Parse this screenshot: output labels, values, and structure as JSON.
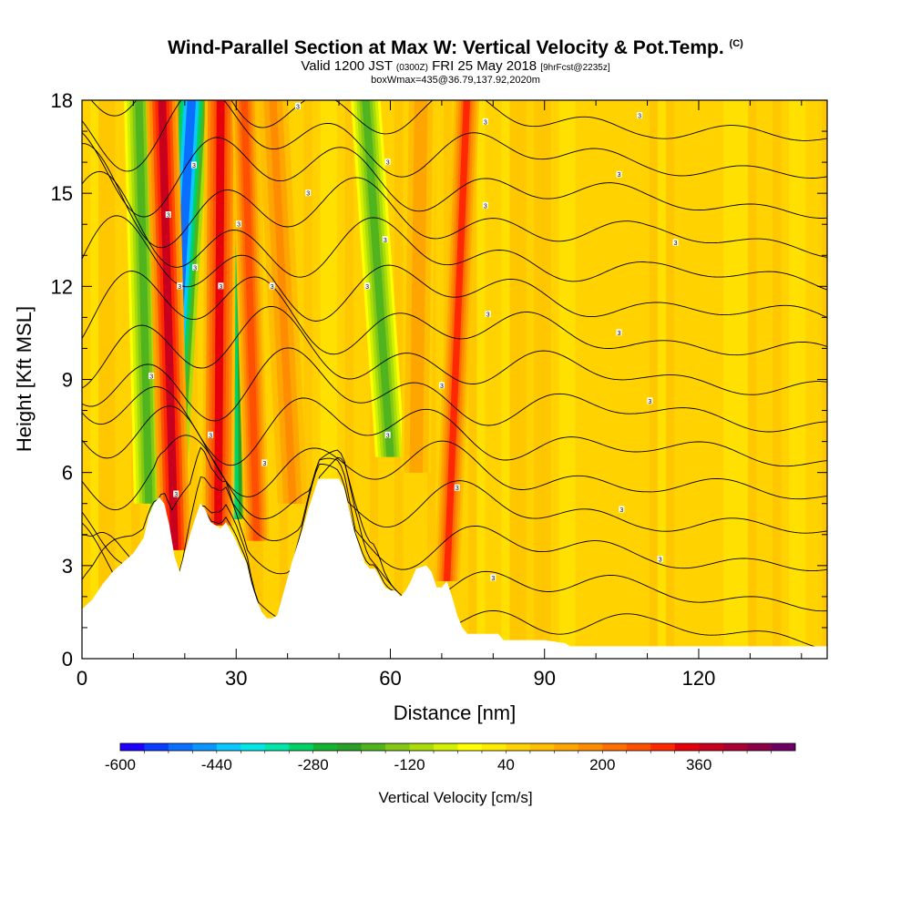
{
  "title": {
    "main": "Wind-Parallel Section at Max W: Vertical Velocity & Pot.Temp.",
    "main_tag": "(C)",
    "valid_prefix": "Valid 1200 JST",
    "valid_zulu": "(0300Z)",
    "valid_date": "FRI 25 May 2018",
    "valid_fcst": "[9hrFcst@2235z]",
    "box_info": "boxWmax=435@36.79,137.92,2020m"
  },
  "chart_data": {
    "type": "heatmap",
    "xlabel": "Distance [nm]",
    "ylabel": "Height [Kft MSL]",
    "xlim": [
      0,
      145
    ],
    "ylim": [
      0,
      18
    ],
    "x_ticks": [
      0,
      30,
      60,
      90,
      120
    ],
    "y_ticks": [
      0,
      3,
      6,
      9,
      12,
      15,
      18
    ],
    "colorbar": {
      "label": "Vertical Velocity [cm/s]",
      "tick_labels": [
        "-600",
        "-440",
        "-280",
        "-120",
        "40",
        "200",
        "360"
      ],
      "tick_values": [
        -600,
        -440,
        -280,
        -120,
        40,
        200,
        360
      ],
      "range": [
        -600,
        520
      ],
      "step": 40,
      "colors": [
        "#1e00ff",
        "#0a3cff",
        "#0a6eff",
        "#0a96ff",
        "#0ac8ff",
        "#00e6e6",
        "#00e6aa",
        "#00d264",
        "#14b432",
        "#28a028",
        "#50b41e",
        "#82c814",
        "#aadc0a",
        "#d2f000",
        "#ffff00",
        "#ffeb00",
        "#ffd200",
        "#ffbe00",
        "#ffa500",
        "#ff8c00",
        "#ff6e00",
        "#ff5000",
        "#ff2800",
        "#e6000a",
        "#c8001e",
        "#aa0032",
        "#8c0046",
        "#6e0064"
      ]
    },
    "terrain_kft": [
      [
        0,
        1.6
      ],
      [
        2,
        1.9
      ],
      [
        4,
        2.4
      ],
      [
        6,
        2.8
      ],
      [
        8,
        3.1
      ],
      [
        10,
        3.4
      ],
      [
        12,
        3.9
      ],
      [
        13,
        4.6
      ],
      [
        14,
        5.0
      ],
      [
        15,
        5.2
      ],
      [
        16,
        5.0
      ],
      [
        17,
        4.3
      ],
      [
        18,
        3.3
      ],
      [
        19,
        2.8
      ],
      [
        20,
        3.4
      ],
      [
        21,
        4.0
      ],
      [
        22,
        4.5
      ],
      [
        23,
        5.0
      ],
      [
        24,
        4.8
      ],
      [
        25,
        4.4
      ],
      [
        26,
        4.3
      ],
      [
        27,
        4.2
      ],
      [
        28,
        4.4
      ],
      [
        29,
        4.1
      ],
      [
        30,
        3.8
      ],
      [
        31,
        3.4
      ],
      [
        32,
        3.1
      ],
      [
        33,
        2.4
      ],
      [
        34,
        1.9
      ],
      [
        35,
        1.5
      ],
      [
        36,
        1.3
      ],
      [
        37,
        1.3
      ],
      [
        38,
        1.4
      ],
      [
        39,
        2.0
      ],
      [
        40,
        2.6
      ],
      [
        41,
        3.2
      ],
      [
        42,
        3.7
      ],
      [
        43,
        4.2
      ],
      [
        44,
        4.8
      ],
      [
        45,
        5.3
      ],
      [
        46,
        5.8
      ],
      [
        48,
        5.8
      ],
      [
        50,
        5.8
      ],
      [
        51,
        5.5
      ],
      [
        52,
        4.8
      ],
      [
        53,
        4.1
      ],
      [
        54,
        3.6
      ],
      [
        55,
        3.1
      ],
      [
        56,
        2.9
      ],
      [
        57,
        2.9
      ],
      [
        58,
        2.6
      ],
      [
        59,
        2.3
      ],
      [
        60,
        2.2
      ],
      [
        61,
        2.2
      ],
      [
        62,
        2.0
      ],
      [
        63,
        2.2
      ],
      [
        64,
        2.5
      ],
      [
        65,
        2.9
      ],
      [
        67,
        3.0
      ],
      [
        68,
        2.8
      ],
      [
        69,
        2.3
      ],
      [
        70,
        2.3
      ],
      [
        71,
        2.5
      ],
      [
        72,
        2.0
      ],
      [
        73,
        1.4
      ],
      [
        74,
        1.0
      ],
      [
        75,
        0.8
      ],
      [
        76,
        0.8
      ],
      [
        81,
        0.8
      ],
      [
        82,
        0.6
      ],
      [
        90,
        0.6
      ],
      [
        94,
        0.5
      ],
      [
        95,
        0.4
      ],
      [
        145,
        0.4
      ]
    ],
    "updraft_bands": [
      {
        "x_bottom": 18.0,
        "y_bottom": 3.5,
        "x_top": 15.5,
        "width_nm": 3.2,
        "w": 360
      },
      {
        "x_bottom": 26.5,
        "y_bottom": 4.3,
        "x_top": 27.0,
        "width_nm": 3.2,
        "w": 320
      },
      {
        "x_bottom": 34.0,
        "y_bottom": 3.8,
        "x_top": 31.5,
        "width_nm": 2.5,
        "w": 240
      },
      {
        "x_bottom": 41.0,
        "y_bottom": 5.0,
        "x_top": 37.0,
        "width_nm": 3.0,
        "w": 180
      },
      {
        "x_bottom": 71.0,
        "y_bottom": 2.5,
        "x_top": 75.0,
        "width_nm": 2.5,
        "w": 280
      },
      {
        "x_bottom": 65.0,
        "y_bottom": 6.0,
        "x_top": 66.0,
        "width_nm": 3.0,
        "w": 140
      }
    ],
    "downdraft_bands": [
      {
        "x_bottom": 16.5,
        "y_bottom": 4.5,
        "x_top": 21.5,
        "width_nm": 3.6,
        "w": -520
      },
      {
        "x_bottom": 29.0,
        "y_bottom": 4.5,
        "x_top": 28.5,
        "width_nm": 3.6,
        "w": -360
      },
      {
        "x_bottom": 13.0,
        "y_bottom": 5.0,
        "x_top": 11.0,
        "width_nm": 3.0,
        "w": -200
      },
      {
        "x_bottom": 60.0,
        "y_bottom": 6.5,
        "x_top": 55.0,
        "width_nm": 3.0,
        "w": -200
      }
    ],
    "theta_contour_labels": [
      {
        "x": 18.3,
        "y": 5.3,
        "text": "3"
      },
      {
        "x": 13.5,
        "y": 9.1,
        "text": "3"
      },
      {
        "x": 25.0,
        "y": 7.2,
        "text": "3"
      },
      {
        "x": 35.5,
        "y": 6.3,
        "text": "3"
      },
      {
        "x": 19.0,
        "y": 12.0,
        "text": "3"
      },
      {
        "x": 16.8,
        "y": 14.3,
        "text": "3"
      },
      {
        "x": 22.0,
        "y": 12.6,
        "text": "3"
      },
      {
        "x": 27.0,
        "y": 12.0,
        "text": "3"
      },
      {
        "x": 30.5,
        "y": 14.0,
        "text": "3"
      },
      {
        "x": 37.0,
        "y": 12.0,
        "text": "3"
      },
      {
        "x": 21.8,
        "y": 15.9,
        "text": "3"
      },
      {
        "x": 44.0,
        "y": 15.0,
        "text": "3"
      },
      {
        "x": 42.0,
        "y": 17.8,
        "text": "3"
      },
      {
        "x": 55.5,
        "y": 12.0,
        "text": "3"
      },
      {
        "x": 59.0,
        "y": 13.5,
        "text": "3"
      },
      {
        "x": 59.5,
        "y": 16.0,
        "text": "3"
      },
      {
        "x": 59.5,
        "y": 7.2,
        "text": "3"
      },
      {
        "x": 70.0,
        "y": 8.8,
        "text": "3"
      },
      {
        "x": 73.0,
        "y": 5.5,
        "text": "3"
      },
      {
        "x": 78.5,
        "y": 14.6,
        "text": "3"
      },
      {
        "x": 78.5,
        "y": 17.3,
        "text": "3"
      },
      {
        "x": 79.0,
        "y": 11.1,
        "text": "3"
      },
      {
        "x": 80.0,
        "y": 2.6,
        "text": "3"
      },
      {
        "x": 104.5,
        "y": 15.6,
        "text": "3"
      },
      {
        "x": 104.5,
        "y": 10.5,
        "text": "3"
      },
      {
        "x": 105.0,
        "y": 4.8,
        "text": "3"
      },
      {
        "x": 108.5,
        "y": 17.5,
        "text": "3"
      },
      {
        "x": 110.5,
        "y": 8.3,
        "text": "3"
      },
      {
        "x": 112.5,
        "y": 3.2,
        "text": "3"
      },
      {
        "x": 115.5,
        "y": 13.4,
        "text": "3"
      }
    ]
  }
}
